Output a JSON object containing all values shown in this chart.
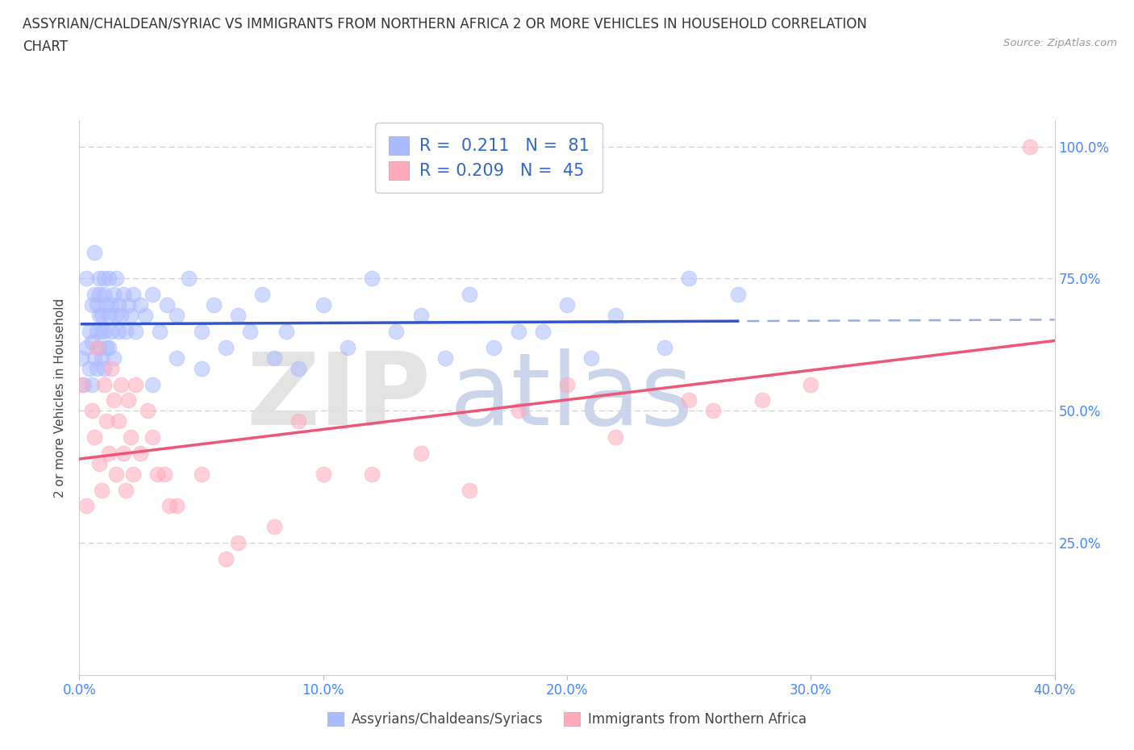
{
  "title_line1": "ASSYRIAN/CHALDEAN/SYRIAC VS IMMIGRANTS FROM NORTHERN AFRICA 2 OR MORE VEHICLES IN HOUSEHOLD CORRELATION",
  "title_line2": "CHART",
  "source_text": "Source: ZipAtlas.com",
  "ylabel": "2 or more Vehicles in Household",
  "series1_label": "Assyrians/Chaldeans/Syriacs",
  "series2_label": "Immigrants from Northern Africa",
  "R1": 0.211,
  "N1": 81,
  "R2": 0.209,
  "N2": 45,
  "series1_color": "#aabbff",
  "series1_edge": "#aabbff",
  "series2_color": "#ffaabb",
  "series2_edge": "#ffaabb",
  "line1_color": "#3355cc",
  "line2_color": "#ee5577",
  "dashed_color": "#99aadd",
  "legend_text_color": "#3366cc",
  "ytick_color": "#4488ff",
  "xtick_color": "#4488ff",
  "background_color": "#ffffff",
  "xlim": [
    0.0,
    0.4
  ],
  "ylim": [
    0.0,
    1.05
  ],
  "xtick_vals": [
    0.0,
    0.1,
    0.2,
    0.3,
    0.4
  ],
  "xtick_labels": [
    "0.0%",
    "10.0%",
    "20.0%",
    "30.0%",
    "40.0%"
  ],
  "ytick_vals": [
    0.25,
    0.5,
    0.75,
    1.0
  ],
  "ytick_labels": [
    "25.0%",
    "50.0%",
    "75.0%",
    "100.0%"
  ],
  "blue_x": [
    0.001,
    0.002,
    0.003,
    0.003,
    0.004,
    0.004,
    0.005,
    0.005,
    0.005,
    0.006,
    0.006,
    0.006,
    0.007,
    0.007,
    0.007,
    0.008,
    0.008,
    0.008,
    0.008,
    0.009,
    0.009,
    0.009,
    0.01,
    0.01,
    0.01,
    0.01,
    0.011,
    0.011,
    0.012,
    0.012,
    0.012,
    0.013,
    0.013,
    0.014,
    0.014,
    0.015,
    0.015,
    0.016,
    0.016,
    0.017,
    0.018,
    0.019,
    0.02,
    0.021,
    0.022,
    0.023,
    0.025,
    0.027,
    0.03,
    0.033,
    0.036,
    0.04,
    0.045,
    0.05,
    0.055,
    0.065,
    0.075,
    0.085,
    0.1,
    0.12,
    0.14,
    0.16,
    0.18,
    0.2,
    0.22,
    0.25,
    0.27,
    0.03,
    0.04,
    0.05,
    0.06,
    0.07,
    0.08,
    0.09,
    0.11,
    0.13,
    0.15,
    0.17,
    0.19,
    0.21,
    0.24
  ],
  "blue_y": [
    0.6,
    0.55,
    0.62,
    0.75,
    0.58,
    0.65,
    0.63,
    0.7,
    0.55,
    0.8,
    0.72,
    0.6,
    0.65,
    0.58,
    0.7,
    0.75,
    0.68,
    0.62,
    0.72,
    0.65,
    0.6,
    0.68,
    0.72,
    0.65,
    0.58,
    0.75,
    0.62,
    0.7,
    0.68,
    0.75,
    0.62,
    0.65,
    0.7,
    0.72,
    0.6,
    0.68,
    0.75,
    0.65,
    0.7,
    0.68,
    0.72,
    0.65,
    0.7,
    0.68,
    0.72,
    0.65,
    0.7,
    0.68,
    0.72,
    0.65,
    0.7,
    0.68,
    0.75,
    0.65,
    0.7,
    0.68,
    0.72,
    0.65,
    0.7,
    0.75,
    0.68,
    0.72,
    0.65,
    0.7,
    0.68,
    0.75,
    0.72,
    0.55,
    0.6,
    0.58,
    0.62,
    0.65,
    0.6,
    0.58,
    0.62,
    0.65,
    0.6,
    0.62,
    0.65,
    0.6,
    0.62
  ],
  "pink_x": [
    0.001,
    0.003,
    0.005,
    0.006,
    0.007,
    0.008,
    0.009,
    0.01,
    0.011,
    0.012,
    0.013,
    0.014,
    0.015,
    0.016,
    0.017,
    0.018,
    0.019,
    0.02,
    0.021,
    0.022,
    0.023,
    0.025,
    0.028,
    0.032,
    0.037,
    0.05,
    0.065,
    0.08,
    0.1,
    0.14,
    0.18,
    0.2,
    0.25,
    0.3,
    0.03,
    0.035,
    0.04,
    0.06,
    0.09,
    0.12,
    0.16,
    0.22,
    0.26,
    0.28,
    0.39
  ],
  "pink_y": [
    0.55,
    0.32,
    0.5,
    0.45,
    0.62,
    0.4,
    0.35,
    0.55,
    0.48,
    0.42,
    0.58,
    0.52,
    0.38,
    0.48,
    0.55,
    0.42,
    0.35,
    0.52,
    0.45,
    0.38,
    0.55,
    0.42,
    0.5,
    0.38,
    0.32,
    0.38,
    0.25,
    0.28,
    0.38,
    0.42,
    0.5,
    0.55,
    0.52,
    0.55,
    0.45,
    0.38,
    0.32,
    0.22,
    0.48,
    0.38,
    0.35,
    0.45,
    0.5,
    0.52,
    1.0
  ],
  "blue_line_solid_end": 0.27,
  "blue_line_start": 0.001,
  "blue_line_end": 0.4,
  "pink_line_start": 0.0,
  "pink_line_end": 0.4
}
